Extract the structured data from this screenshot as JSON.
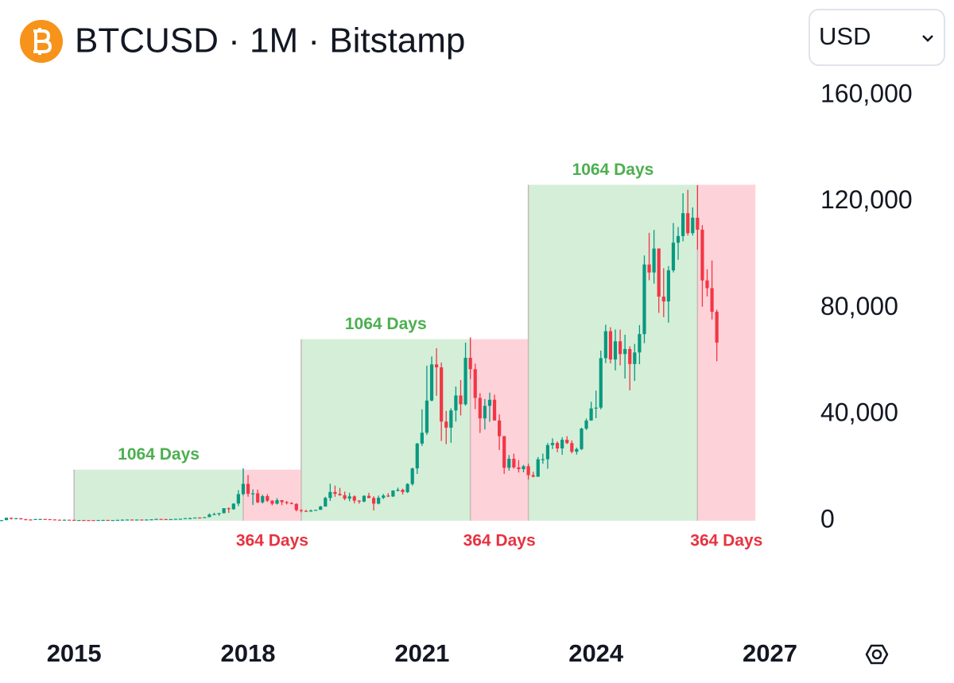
{
  "chart_data": {
    "type": "candlestick",
    "title": "BTCUSD · 1M · Bitstamp",
    "currency": "USD",
    "up_color": "#089981",
    "down_color": "#f23645",
    "grid": false,
    "xlim": [
      "2013-10",
      "2027-07"
    ],
    "xticks": [
      2015,
      2018,
      2021,
      2024,
      2027
    ],
    "ylim": [
      -13500,
      166000
    ],
    "yticks": [
      0,
      {
        "value": 40000,
        "label": "40,000"
      },
      {
        "value": 80000,
        "label": "80,000"
      },
      {
        "value": 120000,
        "label": "120,000"
      },
      {
        "value": 160000,
        "label": "160,000"
      }
    ],
    "annotations": [
      {
        "label": "1064 Days",
        "start": "2015-01",
        "end": "2017-12",
        "top": 19200,
        "fill": "#d5eed8",
        "color": "#4caf50",
        "position": "above"
      },
      {
        "label": "364 Days",
        "start": "2017-12",
        "end": "2018-12",
        "top": 19200,
        "fill": "#fdd3d9",
        "color": "#e8323f",
        "position": "below"
      },
      {
        "label": "1064 Days",
        "start": "2018-12",
        "end": "2021-11",
        "top": 68300,
        "fill": "#d5eed8",
        "color": "#4caf50",
        "position": "above"
      },
      {
        "label": "364 Days",
        "start": "2021-11",
        "end": "2022-11",
        "top": 68300,
        "fill": "#fdd3d9",
        "color": "#e8323f",
        "position": "below"
      },
      {
        "label": "1064 Days",
        "start": "2022-11",
        "end": "2025-10",
        "top": 126400,
        "fill": "#d5eed8",
        "color": "#4caf50",
        "position": "above"
      },
      {
        "label": "364 Days",
        "start": "2025-10",
        "end": "2026-10",
        "top": 126400,
        "fill": "#fdd3d9",
        "color": "#e8323f",
        "position": "below"
      }
    ],
    "x": [
      "2013-10",
      "2013-11",
      "2013-12",
      "2014-01",
      "2014-02",
      "2014-03",
      "2014-04",
      "2014-05",
      "2014-06",
      "2014-07",
      "2014-08",
      "2014-09",
      "2014-10",
      "2014-11",
      "2014-12",
      "2015-01",
      "2015-02",
      "2015-03",
      "2015-04",
      "2015-05",
      "2015-06",
      "2015-07",
      "2015-08",
      "2015-09",
      "2015-10",
      "2015-11",
      "2015-12",
      "2016-01",
      "2016-02",
      "2016-03",
      "2016-04",
      "2016-05",
      "2016-06",
      "2016-07",
      "2016-08",
      "2016-09",
      "2016-10",
      "2016-11",
      "2016-12",
      "2017-01",
      "2017-02",
      "2017-03",
      "2017-04",
      "2017-05",
      "2017-06",
      "2017-07",
      "2017-08",
      "2017-09",
      "2017-10",
      "2017-11",
      "2017-12",
      "2018-01",
      "2018-02",
      "2018-03",
      "2018-04",
      "2018-05",
      "2018-06",
      "2018-07",
      "2018-08",
      "2018-09",
      "2018-10",
      "2018-11",
      "2018-12",
      "2019-01",
      "2019-02",
      "2019-03",
      "2019-04",
      "2019-05",
      "2019-06",
      "2019-07",
      "2019-08",
      "2019-09",
      "2019-10",
      "2019-11",
      "2019-12",
      "2020-01",
      "2020-02",
      "2020-03",
      "2020-04",
      "2020-05",
      "2020-06",
      "2020-07",
      "2020-08",
      "2020-09",
      "2020-10",
      "2020-11",
      "2020-12",
      "2021-01",
      "2021-02",
      "2021-03",
      "2021-04",
      "2021-05",
      "2021-06",
      "2021-07",
      "2021-08",
      "2021-09",
      "2021-10",
      "2021-11",
      "2021-12",
      "2022-01",
      "2022-02",
      "2022-03",
      "2022-04",
      "2022-05",
      "2022-06",
      "2022-07",
      "2022-08",
      "2022-09",
      "2022-10",
      "2022-11",
      "2022-12",
      "2023-01",
      "2023-02",
      "2023-03",
      "2023-04",
      "2023-05",
      "2023-06",
      "2023-07",
      "2023-08",
      "2023-09",
      "2023-10",
      "2023-11",
      "2023-12",
      "2024-01",
      "2024-02",
      "2024-03",
      "2024-04",
      "2024-05",
      "2024-06",
      "2024-07",
      "2024-08",
      "2024-09",
      "2024-10",
      "2024-11",
      "2024-12",
      "2025-01",
      "2025-02",
      "2025-03",
      "2025-04",
      "2025-05",
      "2025-06",
      "2025-07",
      "2025-08",
      "2025-09",
      "2025-10",
      "2025-11",
      "2025-12",
      "2026-01",
      "2026-02"
    ],
    "open": [
      125,
      204,
      1128,
      755,
      938,
      550,
      450,
      445,
      625,
      635,
      585,
      480,
      385,
      338,
      375,
      320,
      215,
      255,
      245,
      235,
      230,
      265,
      285,
      230,
      235,
      315,
      375,
      430,
      370,
      435,
      415,
      450,
      530,
      670,
      625,
      575,
      610,
      700,
      740,
      965,
      965,
      1190,
      1080,
      1350,
      2300,
      2480,
      2860,
      4700,
      4340,
      6450,
      10000,
      13850,
      10100,
      10300,
      6900,
      9240,
      7500,
      6400,
      7730,
      7000,
      6620,
      6300,
      4000,
      3700,
      3450,
      3820,
      4100,
      5330,
      8560,
      10800,
      10100,
      9600,
      8300,
      9150,
      7550,
      7200,
      9350,
      8540,
      6420,
      8630,
      9450,
      9140,
      11350,
      11650,
      10780,
      13800,
      19700,
      29000,
      33100,
      45200,
      58800,
      57700,
      37300,
      35000,
      41500,
      47100,
      43800,
      61300,
      57000,
      46200,
      38500,
      43200,
      45500,
      37700,
      31800,
      19900,
      23300,
      20050,
      19400,
      20500,
      17150,
      16550,
      23100,
      23150,
      28450,
      29250,
      27200,
      30450,
      29200,
      25950,
      26950,
      34650,
      37700,
      42250,
      42550,
      61150,
      71300,
      60650,
      67500,
      62700,
      64600,
      58950,
      63300,
      70200,
      96400,
      93400,
      102400,
      84300,
      82500,
      94200,
      104600,
      107100,
      115700,
      108200,
      114000,
      109500,
      90400,
      87500,
      78600
    ],
    "high": [
      212,
      1163,
      1163,
      1022,
      940,
      710,
      540,
      630,
      680,
      650,
      600,
      500,
      410,
      460,
      385,
      320,
      265,
      300,
      260,
      250,
      270,
      315,
      285,
      245,
      330,
      500,
      465,
      460,
      445,
      440,
      470,
      550,
      780,
      700,
      630,
      610,
      720,
      750,
      975,
      1150,
      1200,
      1300,
      1350,
      2760,
      3000,
      2900,
      4750,
      5000,
      6450,
      11500,
      19700,
      17200,
      11800,
      11700,
      9800,
      9990,
      7750,
      8500,
      7760,
      7400,
      7000,
      6600,
      4300,
      4100,
      4200,
      4100,
      5600,
      9000,
      13900,
      13200,
      12350,
      10950,
      10500,
      9500,
      7750,
      9580,
      10500,
      9200,
      9450,
      10080,
      10400,
      11450,
      12450,
      12050,
      14100,
      19900,
      29300,
      41900,
      58350,
      61800,
      64900,
      59500,
      41300,
      42300,
      50500,
      52900,
      67000,
      69000,
      59100,
      48000,
      45800,
      48200,
      47400,
      40000,
      31900,
      24700,
      25200,
      22800,
      21000,
      21450,
      18400,
      23950,
      25250,
      29200,
      31000,
      29850,
      31400,
      31800,
      30200,
      27500,
      35000,
      38450,
      44750,
      48950,
      64000,
      73750,
      72800,
      71950,
      71900,
      70000,
      65600,
      66500,
      73600,
      99800,
      108300,
      109400,
      102500,
      95000,
      95800,
      112000,
      110500,
      123200,
      124500,
      117900,
      126200,
      111200,
      94600,
      97900,
      79400
    ],
    "low": [
      100,
      200,
      400,
      750,
      400,
      440,
      340,
      420,
      550,
      570,
      440,
      360,
      280,
      320,
      310,
      170,
      205,
      240,
      215,
      225,
      220,
      255,
      200,
      225,
      235,
      300,
      350,
      355,
      365,
      395,
      415,
      440,
      525,
      610,
      480,
      570,
      605,
      690,
      740,
      750,
      920,
      890,
      1070,
      1340,
      2100,
      1850,
      2700,
      2950,
      4100,
      5500,
      9500,
      9000,
      5900,
      6600,
      6450,
      7000,
      5750,
      6100,
      5880,
      6100,
      6200,
      3500,
      3150,
      3350,
      3380,
      3700,
      4080,
      5300,
      7450,
      9000,
      9350,
      7710,
      7300,
      6500,
      6400,
      6900,
      8450,
      3850,
      6150,
      8100,
      8900,
      8900,
      10950,
      9850,
      10400,
      13200,
      17600,
      28100,
      32300,
      44900,
      47000,
      30000,
      28800,
      29300,
      37300,
      39600,
      43300,
      53300,
      42000,
      33000,
      34300,
      37200,
      37700,
      26600,
      17600,
      18800,
      19600,
      18150,
      18200,
      15500,
      16300,
      16500,
      21400,
      19550,
      26950,
      25800,
      24800,
      28850,
      25300,
      24900,
      26550,
      34100,
      37600,
      38550,
      41900,
      59300,
      59200,
      56550,
      58450,
      53500,
      49050,
      52600,
      58900,
      66800,
      90500,
      89200,
      78200,
      76600,
      74500,
      93400,
      98200,
      105100,
      107300,
      107300,
      102000,
      80500,
      84400,
      75700,
      60000
    ],
    "close": [
      204,
      1128,
      755,
      938,
      550,
      450,
      445,
      625,
      635,
      585,
      480,
      385,
      338,
      375,
      320,
      215,
      255,
      245,
      235,
      230,
      265,
      285,
      230,
      235,
      315,
      375,
      430,
      370,
      435,
      415,
      450,
      530,
      670,
      625,
      575,
      610,
      700,
      740,
      965,
      965,
      1190,
      1080,
      1350,
      2300,
      2480,
      2860,
      4700,
      4340,
      6450,
      10000,
      13850,
      10100,
      10300,
      6900,
      9240,
      7500,
      6400,
      7730,
      7000,
      6620,
      6300,
      4000,
      3700,
      3450,
      3820,
      4100,
      5330,
      8560,
      10800,
      10100,
      9600,
      8300,
      9150,
      7550,
      7200,
      9350,
      8540,
      6420,
      8630,
      9450,
      9140,
      11350,
      11650,
      10780,
      13800,
      19700,
      29000,
      33100,
      45200,
      58800,
      57700,
      37300,
      35000,
      41500,
      47100,
      43800,
      61300,
      57000,
      46200,
      38500,
      43200,
      45500,
      37700,
      31800,
      19900,
      23300,
      20050,
      19400,
      20500,
      17150,
      16550,
      23100,
      23150,
      28450,
      29250,
      27200,
      30450,
      29200,
      25950,
      26950,
      34650,
      37700,
      42250,
      42550,
      61150,
      71300,
      60650,
      67500,
      62700,
      64600,
      58950,
      63300,
      70200,
      96400,
      93400,
      102400,
      84300,
      82500,
      94200,
      104600,
      107100,
      115700,
      108200,
      114000,
      109500,
      90400,
      87500,
      78600,
      67000
    ]
  }
}
